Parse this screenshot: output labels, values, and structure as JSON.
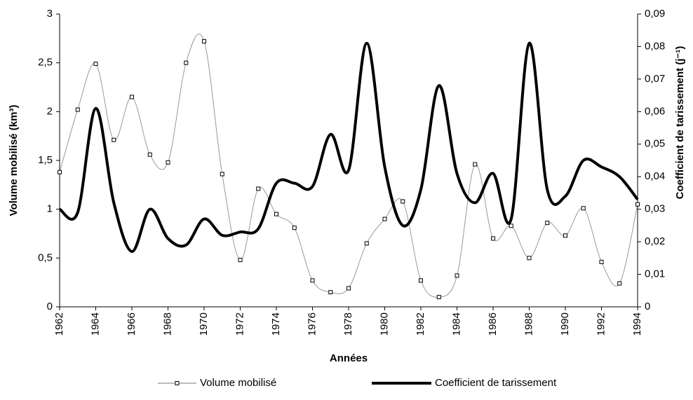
{
  "chart_data": {
    "type": "line",
    "xlabel": "Années",
    "ylabel": "Volume mobilisé (km³)",
    "y2label": "Coefficient de tarissement (j⁻¹)",
    "x": [
      1962,
      1963,
      1964,
      1965,
      1966,
      1967,
      1968,
      1969,
      1970,
      1971,
      1972,
      1973,
      1974,
      1975,
      1976,
      1977,
      1978,
      1979,
      1980,
      1981,
      1982,
      1983,
      1984,
      1985,
      1986,
      1987,
      1988,
      1989,
      1990,
      1991,
      1992,
      1993,
      1994
    ],
    "series": [
      {
        "name": "Volume mobilisé",
        "color": "#999999",
        "axis": "y",
        "marker": "square",
        "values": [
          1.38,
          2.02,
          2.49,
          1.71,
          2.15,
          1.56,
          1.48,
          2.5,
          2.72,
          1.36,
          0.48,
          1.21,
          0.95,
          0.81,
          0.27,
          0.15,
          0.19,
          0.65,
          0.9,
          1.08,
          0.27,
          0.1,
          0.32,
          1.46,
          0.7,
          0.83,
          0.5,
          0.86,
          0.73,
          1.01,
          0.46,
          0.24,
          1.05
        ]
      },
      {
        "name": "Coefficient de tarissement",
        "color": "#000000",
        "axis": "y2",
        "values": [
          0.03,
          0.029,
          0.061,
          0.032,
          0.017,
          0.03,
          0.021,
          0.019,
          0.027,
          0.022,
          0.023,
          0.024,
          0.038,
          0.038,
          0.037,
          0.053,
          0.042,
          0.081,
          0.043,
          0.025,
          0.036,
          0.068,
          0.041,
          0.032,
          0.041,
          0.027,
          0.081,
          0.036,
          0.034,
          0.045,
          0.043,
          0.04,
          0.033
        ]
      }
    ],
    "xlim": [
      1962,
      1994
    ],
    "xticks": [
      1962,
      1964,
      1966,
      1968,
      1970,
      1972,
      1974,
      1976,
      1978,
      1980,
      1982,
      1984,
      1986,
      1988,
      1990,
      1992,
      1994
    ],
    "ylim": [
      0,
      3
    ],
    "yticks": [
      0,
      {
        "value": 0.5,
        "label": "0,5"
      },
      1,
      {
        "value": 1.5,
        "label": "1,5"
      },
      2,
      {
        "value": 2.5,
        "label": "2,5"
      },
      3
    ],
    "y2lim": [
      0,
      0.09
    ],
    "y2ticks": [
      0,
      {
        "value": 0.01,
        "label": "0,01"
      },
      {
        "value": 0.02,
        "label": "0,02"
      },
      {
        "value": 0.03,
        "label": "0,03"
      },
      {
        "value": 0.04,
        "label": "0,04"
      },
      {
        "value": 0.05,
        "label": "0,05"
      },
      {
        "value": 0.06,
        "label": "0,06"
      },
      {
        "value": 0.07,
        "label": "0,07"
      },
      {
        "value": 0.08,
        "label": "0,08"
      },
      {
        "value": 0.09,
        "label": "0,09"
      }
    ],
    "legend": "bottom"
  }
}
